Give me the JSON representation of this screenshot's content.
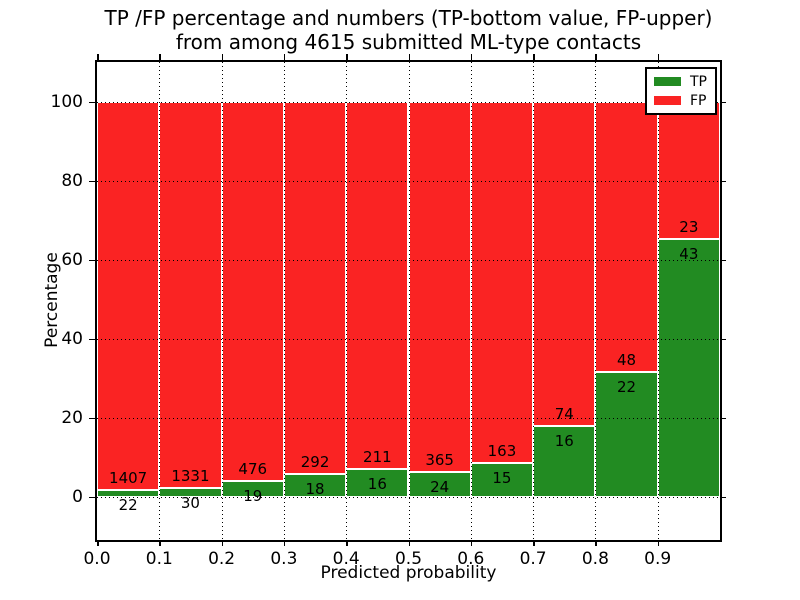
{
  "chart_data": {
    "type": "bar",
    "variant": "100-percent-stacked-histogram",
    "title": "TP /FP percentage and numbers (TP-bottom value, FP-upper)\nfrom among 4615 submitted ML-type contacts",
    "xlabel": "Predicted probability",
    "ylabel": "Percentage",
    "xlim": [
      0.0,
      1.0
    ],
    "ylim": [
      -11,
      110
    ],
    "grid": "dotted-black",
    "background": "#ffffff",
    "frame_color": "#000000",
    "bin_edges": [
      0.0,
      0.1,
      0.2,
      0.3,
      0.4,
      0.5,
      0.6,
      0.7,
      0.8,
      0.9,
      1.0
    ],
    "x_tick_values": [
      0.0,
      0.1,
      0.2,
      0.3,
      0.4,
      0.5,
      0.6,
      0.7,
      0.8,
      0.9
    ],
    "x_tick_labels": [
      "0.0",
      "0.1",
      "0.2",
      "0.3",
      "0.4",
      "0.5",
      "0.6",
      "0.7",
      "0.8",
      "0.9"
    ],
    "y_tick_values": [
      0,
      20,
      40,
      60,
      80,
      100
    ],
    "y_tick_labels": [
      "0",
      "20",
      "40",
      "60",
      "80",
      "100"
    ],
    "series": [
      {
        "name": "TP",
        "color": "#228b22",
        "counts": [
          22,
          30,
          19,
          18,
          16,
          24,
          15,
          16,
          22,
          43
        ]
      },
      {
        "name": "FP",
        "color": "#fa2323",
        "counts": [
          1407,
          1331,
          476,
          292,
          211,
          365,
          163,
          74,
          48,
          23
        ]
      }
    ],
    "tp_percent_of_bin": [
      1.54,
      2.2,
      3.84,
      5.81,
      7.05,
      6.17,
      8.43,
      17.78,
      31.43,
      65.15
    ],
    "legend": {
      "position": "upper-right",
      "entries": [
        {
          "label": "TP",
          "color": "#228b22"
        },
        {
          "label": "FP",
          "color": "#fa2323"
        }
      ]
    }
  }
}
